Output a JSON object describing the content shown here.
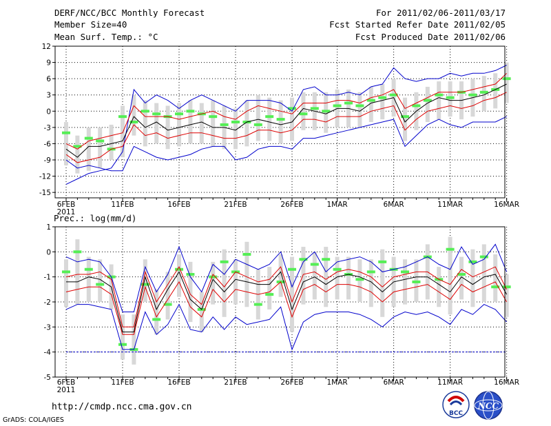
{
  "header": {
    "title": "DERF/NCC/BCC Monthly Forecast",
    "member_size": "Member Size=40",
    "variable": "Mean Surf. Temp.: °C",
    "period": "For 2011/02/06-2011/03/17",
    "refer_date": "Fcst Started Refer Date 2011/02/05",
    "produced_date": "Fcst Produced Date 2011/02/06"
  },
  "footer": {
    "url": "http://cmdp.ncc.cma.gov.cn",
    "credit": "GrADS: COLA/IGES"
  },
  "logos": {
    "bcc": "BCC",
    "ncc": "NCC"
  },
  "colors": {
    "envelope": "#0000cc",
    "spread": "#dd0000",
    "mean": "#000000",
    "bar": "#d8d8d8",
    "observed": "#55ee55",
    "baseline": "#0000cc"
  },
  "chart_data": [
    {
      "type": "line",
      "title": "Mean Surf. Temp.: °C",
      "x_tick_labels": [
        "6FEB",
        "11FEB",
        "16FEB",
        "21FEB",
        "26FEB",
        "1MAR",
        "6MAR",
        "11MAR",
        "16MAR"
      ],
      "x_tick_days": [
        0,
        5,
        10,
        15,
        20,
        24,
        29,
        34,
        39
      ],
      "x_year_label": "2011",
      "ylim": [
        -16,
        12
      ],
      "yticks": [
        12,
        9,
        6,
        3,
        0,
        -3,
        -6,
        -9,
        -12,
        -15
      ],
      "series": [
        {
          "name": "max",
          "values": [
            -13.5,
            -12.5,
            -11.5,
            -11,
            -10.5,
            -7.5,
            4,
            1.5,
            3,
            2,
            0.5,
            2,
            3,
            2,
            1,
            0,
            2,
            2,
            2,
            1.5,
            0,
            4,
            4.5,
            3,
            3,
            3.5,
            3,
            4.5,
            5,
            8,
            6,
            5.5,
            6,
            6,
            7,
            6.5,
            7,
            7,
            7.5,
            8.5
          ]
        },
        {
          "name": "upper",
          "values": [
            -6,
            -7,
            -5.5,
            -5,
            -4.5,
            -4,
            1,
            -1,
            -1,
            -1,
            -1.5,
            -1,
            -0.5,
            0,
            -1,
            -1.5,
            0,
            1,
            0.5,
            0,
            -0.5,
            1.5,
            1.5,
            1.5,
            2,
            2,
            1.5,
            2.5,
            3,
            4,
            0.5,
            1.5,
            2.5,
            3.5,
            3.5,
            3.5,
            4,
            4.5,
            5,
            7
          ]
        },
        {
          "name": "mean",
          "values": [
            -7,
            -8.5,
            -6.5,
            -6.5,
            -6,
            -5.5,
            -1,
            -3,
            -2,
            -3.5,
            -3,
            -2.5,
            -2,
            -3,
            -3,
            -3.5,
            -2,
            -1.5,
            -2,
            -2.5,
            -2,
            0.5,
            0,
            -0.5,
            0.5,
            0.5,
            0,
            1.5,
            2,
            2.5,
            -2,
            0,
            1.5,
            2.5,
            2,
            2,
            2.5,
            3,
            4,
            5
          ]
        },
        {
          "name": "lower",
          "values": [
            -8,
            -9.5,
            -9,
            -8.5,
            -7,
            -6.5,
            -2.5,
            -4.5,
            -4,
            -5,
            -4.5,
            -4,
            -4,
            -4.5,
            -5,
            -5,
            -4.5,
            -3.5,
            -3.5,
            -4,
            -3.5,
            -1.5,
            -1.5,
            -2,
            -1,
            -1,
            -1,
            0,
            0.5,
            1,
            -3.5,
            -1.5,
            0,
            0.5,
            1,
            0.5,
            1,
            2,
            2.5,
            3.5
          ]
        },
        {
          "name": "min",
          "values": [
            -9,
            -10.5,
            -10,
            -10.5,
            -11,
            -11,
            -6.5,
            -7.5,
            -8.5,
            -9,
            -8.5,
            -8,
            -7,
            -6.5,
            -6.5,
            -9,
            -8.5,
            -7,
            -6.5,
            -6.5,
            -7,
            -5,
            -5,
            -4.5,
            -4,
            -3.5,
            -3,
            -2.5,
            -2,
            -1.5,
            -6.5,
            -4.5,
            -2.5,
            -1.5,
            -2.5,
            -3,
            -2,
            -2,
            -2,
            -1
          ]
        },
        {
          "name": "observed",
          "values": [
            -4,
            -6.5,
            -5,
            -5.5,
            -7,
            -1,
            -2,
            0,
            -0.5,
            -1,
            -0.5,
            0,
            -0.5,
            -1,
            -2.5,
            -2,
            -2,
            -2.5,
            -1,
            -1.5,
            0.5,
            -0.5,
            0.5,
            0,
            1,
            1.5,
            1,
            2,
            2.5,
            3,
            -1,
            1,
            2,
            3,
            2.5,
            3.5,
            3,
            3.5,
            4,
            6
          ]
        }
      ]
    },
    {
      "type": "line",
      "title": "Prec.: log(mm/d)",
      "x_tick_labels": [
        "6FEB",
        "11FEB",
        "16FEB",
        "21FEB",
        "26FEB",
        "1MAR",
        "6MAR",
        "11MAR",
        "16MAR"
      ],
      "x_tick_days": [
        0,
        5,
        10,
        15,
        20,
        24,
        29,
        34,
        39
      ],
      "x_year_label": "2011",
      "ylim": [
        -5,
        1
      ],
      "yticks": [
        1,
        0,
        -1,
        -2,
        -3,
        -4,
        -5
      ],
      "baseline": -4,
      "series": [
        {
          "name": "max",
          "values": [
            -0.2,
            -0.4,
            -0.3,
            -0.4,
            -1.0,
            -2.4,
            -2.4,
            -0.6,
            -1.6,
            -0.9,
            0.2,
            -1.0,
            -1.6,
            -0.5,
            -0.9,
            -0.3,
            -0.5,
            -0.7,
            -0.5,
            0.0,
            -1.4,
            -0.4,
            0.0,
            -0.8,
            -0.4,
            -0.3,
            -0.2,
            -0.4,
            -0.8,
            -0.7,
            -0.6,
            -0.4,
            -0.2,
            -0.5,
            -0.7,
            0.2,
            -0.5,
            -0.3,
            0.3,
            -0.8
          ]
        },
        {
          "name": "upper",
          "values": [
            -1.0,
            -0.9,
            -0.9,
            -0.8,
            -1.1,
            -3.0,
            -3.0,
            -0.8,
            -2.0,
            -1.3,
            -0.6,
            -1.7,
            -2.1,
            -0.9,
            -1.4,
            -0.8,
            -1.0,
            -1.2,
            -1.1,
            -0.6,
            -2.0,
            -0.9,
            -0.8,
            -1.1,
            -0.8,
            -0.7,
            -0.8,
            -1.0,
            -1.4,
            -1.0,
            -0.9,
            -0.8,
            -0.8,
            -1.1,
            -1.3,
            -0.7,
            -1.0,
            -0.8,
            -0.6,
            -1.5
          ]
        },
        {
          "name": "mean",
          "values": [
            -1.2,
            -1.2,
            -1.0,
            -1.1,
            -1.4,
            -3.2,
            -3.2,
            -1.0,
            -2.3,
            -1.5,
            -0.8,
            -1.9,
            -2.3,
            -1.1,
            -1.6,
            -1.1,
            -1.2,
            -1.3,
            -1.3,
            -0.8,
            -2.3,
            -1.2,
            -1.0,
            -1.3,
            -1.0,
            -0.9,
            -1.0,
            -1.2,
            -1.6,
            -1.2,
            -1.1,
            -1.0,
            -1.0,
            -1.3,
            -1.6,
            -1.0,
            -1.3,
            -1.0,
            -0.9,
            -1.7
          ]
        },
        {
          "name": "lower",
          "values": [
            -1.6,
            -1.5,
            -1.4,
            -1.4,
            -1.7,
            -3.3,
            -3.3,
            -1.4,
            -2.6,
            -1.9,
            -1.2,
            -2.2,
            -2.6,
            -1.5,
            -2.0,
            -1.5,
            -1.6,
            -1.7,
            -1.6,
            -1.2,
            -2.6,
            -1.5,
            -1.3,
            -1.6,
            -1.3,
            -1.3,
            -1.4,
            -1.6,
            -2.0,
            -1.6,
            -1.5,
            -1.4,
            -1.3,
            -1.6,
            -1.9,
            -1.3,
            -1.6,
            -1.4,
            -1.2,
            -2.0
          ]
        },
        {
          "name": "min",
          "values": [
            -2.3,
            -2.1,
            -2.1,
            -2.2,
            -2.3,
            -3.9,
            -3.9,
            -2.4,
            -3.3,
            -2.9,
            -2.1,
            -3.1,
            -3.2,
            -2.6,
            -3.1,
            -2.6,
            -2.9,
            -2.8,
            -2.7,
            -2.2,
            -3.9,
            -2.8,
            -2.5,
            -2.4,
            -2.4,
            -2.4,
            -2.5,
            -2.7,
            -3.0,
            -2.6,
            -2.4,
            -2.5,
            -2.4,
            -2.6,
            -2.9,
            -2.3,
            -2.5,
            -2.1,
            -2.3,
            -2.8
          ]
        },
        {
          "name": "observed",
          "values": [
            -0.8,
            0.0,
            -0.7,
            -1.3,
            -1.0,
            -3.7,
            -3.9,
            -1.3,
            -2.7,
            -2.1,
            -0.7,
            -0.9,
            -2.3,
            -1.0,
            -0.4,
            -0.8,
            -0.1,
            -2.1,
            -1.7,
            -1.2,
            -0.7,
            -0.3,
            -0.5,
            -0.3,
            -0.7,
            -0.9,
            -1.1,
            -0.8,
            -0.4,
            -0.7,
            -0.8,
            -1.2,
            -0.2,
            -1.1,
            0.1,
            -0.9,
            -0.4,
            -0.2,
            -1.4,
            -1.4
          ]
        }
      ]
    }
  ]
}
